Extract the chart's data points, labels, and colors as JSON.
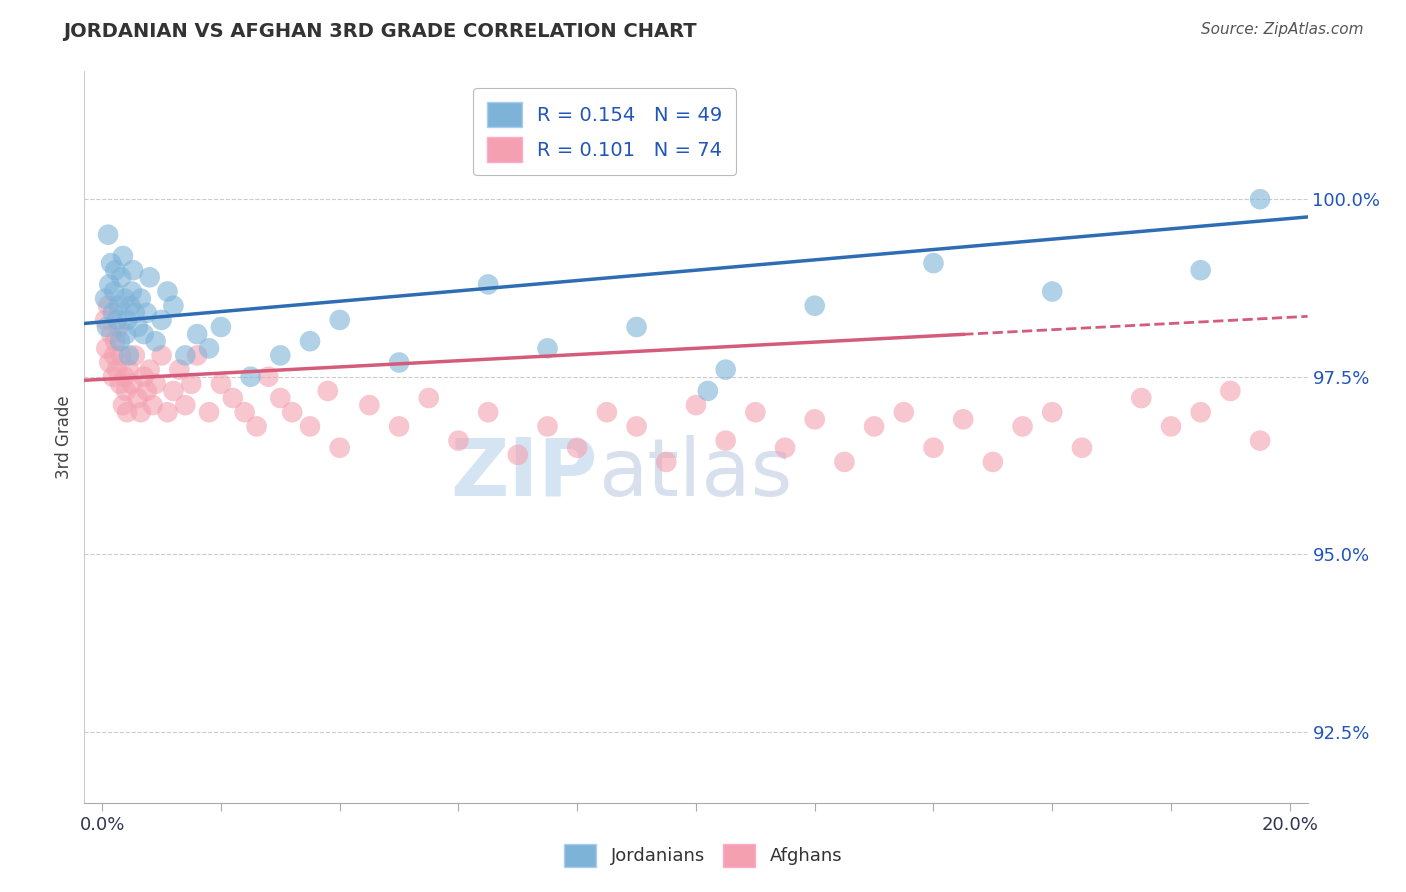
{
  "title": "JORDANIAN VS AFGHAN 3RD GRADE CORRELATION CHART",
  "source": "Source: ZipAtlas.com",
  "ylabel": "3rd Grade",
  "xlim": [
    -0.3,
    20.3
  ],
  "ylim": [
    91.5,
    101.8
  ],
  "yticks": [
    92.5,
    95.0,
    97.5,
    100.0
  ],
  "ytick_labels": [
    "92.5%",
    "95.0%",
    "97.5%",
    "100.0%"
  ],
  "xticks": [
    0.0,
    2.0,
    4.0,
    6.0,
    8.0,
    10.0,
    12.0,
    14.0,
    16.0,
    18.0,
    20.0
  ],
  "blue_color": "#7EB3D8",
  "pink_color": "#F4A0B0",
  "blue_line_color": "#2E6DB4",
  "pink_line_color": "#D45C7A",
  "R_blue": 0.154,
  "N_blue": 49,
  "R_pink": 0.101,
  "N_pink": 74,
  "blue_line_y0": 98.25,
  "blue_line_y1": 99.75,
  "pink_line_y0": 97.45,
  "pink_line_y1": 98.35,
  "pink_solid_end_x": 14.5,
  "blue_x": [
    0.05,
    0.08,
    0.1,
    0.12,
    0.15,
    0.18,
    0.2,
    0.22,
    0.25,
    0.28,
    0.3,
    0.32,
    0.35,
    0.38,
    0.4,
    0.42,
    0.45,
    0.48,
    0.5,
    0.52,
    0.55,
    0.6,
    0.65,
    0.7,
    0.75,
    0.8,
    0.9,
    1.0,
    1.1,
    1.2,
    1.4,
    1.6,
    1.8,
    2.0,
    2.5,
    3.0,
    3.5,
    4.0,
    5.0,
    6.5,
    7.5,
    9.0,
    10.5,
    12.0,
    14.0,
    16.0,
    18.5,
    19.5,
    10.2
  ],
  "blue_y": [
    98.6,
    98.2,
    99.5,
    98.8,
    99.1,
    98.4,
    98.7,
    99.0,
    98.3,
    98.5,
    98.0,
    98.9,
    99.2,
    98.6,
    98.1,
    98.3,
    97.8,
    98.5,
    98.7,
    99.0,
    98.4,
    98.2,
    98.6,
    98.1,
    98.4,
    98.9,
    98.0,
    98.3,
    98.7,
    98.5,
    97.8,
    98.1,
    97.9,
    98.2,
    97.5,
    97.8,
    98.0,
    98.3,
    97.7,
    98.8,
    97.9,
    98.2,
    97.6,
    98.5,
    99.1,
    98.7,
    99.0,
    100.0,
    97.3
  ],
  "pink_x": [
    0.05,
    0.07,
    0.1,
    0.12,
    0.15,
    0.18,
    0.2,
    0.22,
    0.25,
    0.28,
    0.3,
    0.32,
    0.35,
    0.38,
    0.4,
    0.42,
    0.45,
    0.5,
    0.55,
    0.6,
    0.65,
    0.7,
    0.75,
    0.8,
    0.85,
    0.9,
    1.0,
    1.1,
    1.2,
    1.3,
    1.4,
    1.5,
    1.6,
    1.8,
    2.0,
    2.2,
    2.4,
    2.6,
    2.8,
    3.0,
    3.2,
    3.5,
    3.8,
    4.0,
    4.5,
    5.0,
    5.5,
    6.0,
    6.5,
    7.0,
    7.5,
    8.0,
    8.5,
    9.0,
    9.5,
    10.0,
    10.5,
    11.0,
    11.5,
    12.0,
    12.5,
    13.0,
    13.5,
    14.0,
    14.5,
    15.0,
    15.5,
    16.0,
    16.5,
    17.5,
    18.0,
    18.5,
    19.0,
    19.5
  ],
  "pink_y": [
    98.3,
    97.9,
    98.5,
    97.7,
    98.1,
    97.5,
    97.8,
    98.0,
    97.6,
    98.2,
    97.4,
    97.8,
    97.1,
    97.5,
    97.3,
    97.0,
    97.6,
    97.4,
    97.8,
    97.2,
    97.0,
    97.5,
    97.3,
    97.6,
    97.1,
    97.4,
    97.8,
    97.0,
    97.3,
    97.6,
    97.1,
    97.4,
    97.8,
    97.0,
    97.4,
    97.2,
    97.0,
    96.8,
    97.5,
    97.2,
    97.0,
    96.8,
    97.3,
    96.5,
    97.1,
    96.8,
    97.2,
    96.6,
    97.0,
    96.4,
    96.8,
    96.5,
    97.0,
    96.8,
    96.3,
    97.1,
    96.6,
    97.0,
    96.5,
    96.9,
    96.3,
    96.8,
    97.0,
    96.5,
    96.9,
    96.3,
    96.8,
    97.0,
    96.5,
    97.2,
    96.8,
    97.0,
    97.3,
    96.6
  ]
}
